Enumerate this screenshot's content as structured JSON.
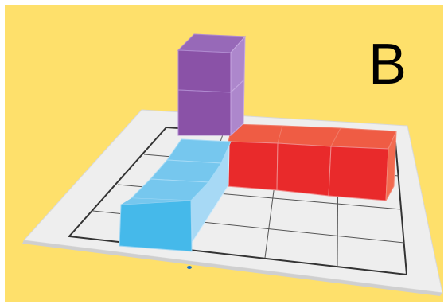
{
  "label": "B",
  "colors": {
    "background": "#fee06b",
    "mat": "#eeeeee",
    "grid_lines": "#333333",
    "blue_cubes": "#45b9ea",
    "red_cubes": "#e92a2b",
    "purple_cubes": "#8a52a7",
    "marker": "#1e6ec8"
  },
  "cubes": {
    "purple_count": 2,
    "blue_count": 3,
    "red_count": 3
  }
}
